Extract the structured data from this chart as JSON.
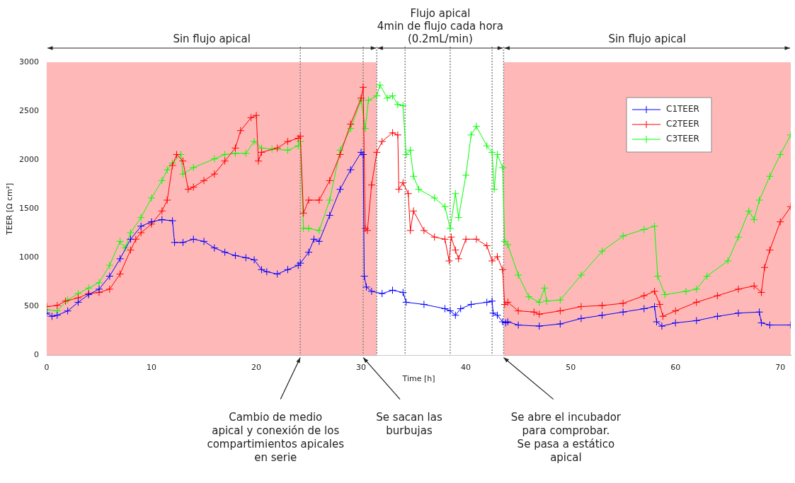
{
  "chart_data": {
    "type": "line",
    "xlabel": "Time [h]",
    "ylabel": "TEER [Ω cm²]",
    "xlim": [
      0,
      71
    ],
    "xticks": [
      0,
      10,
      20,
      30,
      40,
      50,
      60,
      70
    ],
    "ylim": [
      0,
      3000
    ],
    "yticks": [
      0,
      500,
      1000,
      1500,
      2000,
      2500,
      3000
    ],
    "grid": false,
    "legend": "top right",
    "marker": "cross",
    "line_style": "solid",
    "series": [
      {
        "name": "C1TEER",
        "color": "#0000ff",
        "x": [
          0,
          0.5,
          1,
          2,
          3,
          4,
          5,
          6,
          7,
          8,
          9,
          10,
          11,
          12,
          12.2,
          13,
          14,
          15,
          16,
          17,
          18,
          19,
          19.8,
          20.5,
          21,
          22,
          23,
          24,
          24.2,
          25,
          25.5,
          26,
          27,
          28,
          29,
          30,
          30.2,
          30.3,
          30.5,
          31,
          32,
          33,
          34,
          34.3,
          36,
          38,
          38.5,
          39,
          39.5,
          40.5,
          42,
          42.5,
          42.6,
          43,
          43.5,
          43.8,
          44,
          45,
          47,
          49,
          51,
          53,
          55,
          57,
          58,
          58.2,
          58.7,
          60,
          62,
          64,
          66,
          68,
          68.2,
          69,
          71
        ],
        "values": [
          433,
          400,
          411,
          455,
          544,
          622,
          678,
          811,
          989,
          1189,
          1322,
          1367,
          1389,
          1378,
          1156,
          1156,
          1189,
          1167,
          1100,
          1056,
          1022,
          1000,
          978,
          878,
          856,
          833,
          878,
          922,
          944,
          1056,
          1189,
          1167,
          1433,
          1700,
          1900,
          2078,
          2056,
          811,
          700,
          656,
          633,
          667,
          644,
          544,
          522,
          478,
          456,
          411,
          478,
          522,
          544,
          556,
          433,
          411,
          344,
          333,
          344,
          311,
          300,
          322,
          378,
          411,
          444,
          478,
          500,
          344,
          300,
          333,
          356,
          400,
          433,
          444,
          333,
          311,
          311
        ]
      },
      {
        "name": "C2TEER",
        "color": "#ff0000",
        "x": [
          0,
          1,
          1.8,
          3,
          4,
          5,
          6,
          7,
          8,
          8.5,
          9,
          10,
          11,
          11.5,
          12,
          12.4,
          13,
          13.5,
          14,
          15,
          16,
          17,
          18,
          18.5,
          19.5,
          20,
          20.2,
          20.5,
          22,
          23,
          24,
          24.2,
          24.5,
          25,
          26,
          27,
          28,
          29,
          30,
          30.2,
          30.4,
          30.6,
          31,
          31.5,
          32,
          33,
          33.5,
          33.6,
          34,
          34.5,
          34.7,
          35,
          36,
          37,
          38,
          38.4,
          38.6,
          39,
          39.3,
          40,
          41,
          42,
          42.5,
          43,
          43.5,
          43.7,
          44,
          45,
          46.5,
          47,
          49,
          51,
          53,
          55,
          57,
          58,
          58.5,
          58.8,
          60,
          62,
          64,
          66,
          67.5,
          68.2,
          68.5,
          69,
          70,
          71
        ],
        "values": [
          500,
          511,
          556,
          589,
          633,
          644,
          678,
          833,
          1078,
          1189,
          1256,
          1344,
          1478,
          1589,
          1944,
          2056,
          1989,
          1700,
          1722,
          1789,
          1856,
          1989,
          2122,
          2300,
          2433,
          2456,
          1989,
          2078,
          2122,
          2189,
          2222,
          2244,
          1456,
          1589,
          1589,
          1789,
          2056,
          2367,
          2633,
          2744,
          1300,
          1278,
          1744,
          2078,
          2189,
          2278,
          2256,
          1700,
          1767,
          1656,
          1278,
          1478,
          1278,
          1211,
          1189,
          967,
          1211,
          1078,
          989,
          1189,
          1189,
          1122,
          967,
          1011,
          878,
          522,
          544,
          456,
          444,
          422,
          456,
          500,
          511,
          533,
          611,
          656,
          522,
          400,
          456,
          544,
          611,
          678,
          711,
          644,
          900,
          1078,
          1367,
          1522
        ]
      },
      {
        "name": "C3TEER",
        "color": "#00ff00",
        "x": [
          0,
          1,
          2,
          3,
          4,
          5,
          6,
          7,
          7.5,
          8,
          9,
          10,
          11,
          11.5,
          12,
          12.8,
          13,
          14,
          16,
          17,
          18,
          19,
          19.8,
          20.5,
          21.5,
          23,
          24,
          24.2,
          24.5,
          25,
          26,
          27,
          28,
          29,
          30,
          30.4,
          30.7,
          31.5,
          31.8,
          32.5,
          33,
          33.5,
          34,
          34.3,
          34.7,
          35,
          35.5,
          37,
          38,
          38.5,
          39,
          39.3,
          40,
          40.5,
          41,
          42,
          42.5,
          42.7,
          43,
          43.5,
          43.7,
          44,
          45,
          46,
          47,
          47.5,
          47.7,
          49,
          51,
          53,
          55,
          57,
          58,
          58.3,
          59,
          61,
          62,
          63,
          65,
          66,
          67,
          67.5,
          68,
          69,
          70,
          71
        ],
        "values": [
          467,
          456,
          567,
          633,
          689,
          744,
          922,
          1167,
          1100,
          1256,
          1411,
          1611,
          1789,
          1900,
          1967,
          2056,
          1856,
          1922,
          2011,
          2056,
          2067,
          2067,
          2189,
          2122,
          2111,
          2100,
          2144,
          2189,
          1300,
          1300,
          1278,
          1589,
          2100,
          2322,
          2611,
          2322,
          2611,
          2656,
          2767,
          2633,
          2656,
          2567,
          2556,
          2056,
          2100,
          1833,
          1700,
          1611,
          1522,
          1300,
          1656,
          1411,
          1844,
          2256,
          2344,
          2144,
          2078,
          1700,
          2056,
          1922,
          1167,
          1133,
          822,
          600,
          544,
          689,
          556,
          567,
          822,
          1067,
          1222,
          1289,
          1322,
          811,
          622,
          656,
          678,
          811,
          967,
          1211,
          1478,
          1389,
          1589,
          1833,
          2056,
          2256
        ]
      }
    ],
    "bands": [
      {
        "axis": "x",
        "from": 0,
        "to": 31.5,
        "label": "Sin flujo apical",
        "color": "#ffb8b8"
      },
      {
        "axis": "x",
        "from": 31.5,
        "to": 43.6,
        "label": "Flujo apical\n4min de flujo cada hora\n(0.2mL/min)",
        "color": "#ffffff"
      },
      {
        "axis": "x",
        "from": 43.6,
        "to": 71,
        "label": "Sin flujo apical",
        "color": "#ffb8b8"
      }
    ],
    "ref_lines": [
      {
        "axis": "x",
        "value": 24.2,
        "color": "#888888",
        "line_style": "dotted"
      },
      {
        "axis": "x",
        "value": 30.2,
        "color": "#888888",
        "line_style": "dotted"
      },
      {
        "axis": "x",
        "value": 31.5,
        "color": "#888888",
        "line_style": "dotted"
      },
      {
        "axis": "x",
        "value": 34.2,
        "color": "#888888",
        "line_style": "dotted"
      },
      {
        "axis": "x",
        "value": 38.5,
        "color": "#888888",
        "line_style": "dotted"
      },
      {
        "axis": "x",
        "value": 42.5,
        "color": "#888888",
        "line_style": "dotted"
      },
      {
        "axis": "x",
        "value": 43.6,
        "color": "#888888",
        "line_style": "dotted"
      }
    ],
    "annotations": [
      {
        "text": "Cambio de medio\napical y conexión de los\ncompartimientos apicales\nen serie",
        "x": 24.2,
        "y": 0
      },
      {
        "text": "Se sacan las\nburbujas",
        "x": 30.2,
        "y": 0
      },
      {
        "text": "Se abre el incubador\npara comprobar.\nSe pasa a estático\napical",
        "x": 43.6,
        "y": 0
      }
    ]
  }
}
